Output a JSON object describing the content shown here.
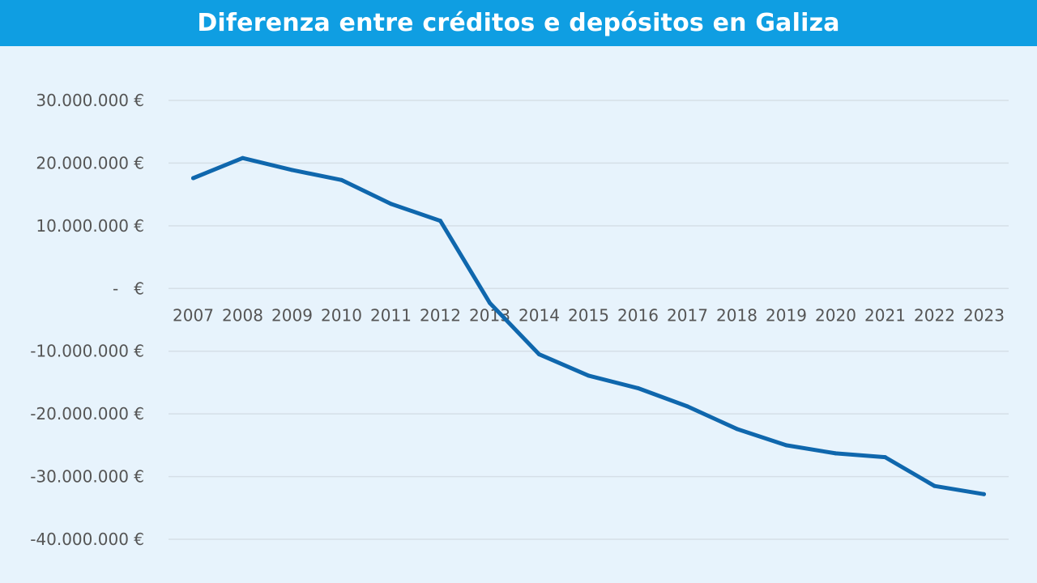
{
  "header": {
    "title": "Diferenza entre créditos e depósitos en Galiza"
  },
  "colors": {
    "header_bg": "#0f9ee2",
    "plot_bg": "#e7f3fc",
    "line": "#0f67ad",
    "grid": "#d5dfe7"
  },
  "chart_data": {
    "type": "line",
    "title": "Diferenza entre créditos e depósitos en Galiza",
    "xlabel": "",
    "ylabel": "",
    "categories": [
      "2007",
      "2008",
      "2009",
      "2010",
      "2011",
      "2012",
      "2013",
      "2014",
      "2015",
      "2016",
      "2017",
      "2018",
      "2019",
      "2020",
      "2021",
      "2022",
      "2023"
    ],
    "series": [
      {
        "values": [
          17600000,
          20800000,
          18900000,
          17300000,
          13500000,
          10800000,
          -2300000,
          -10500000,
          -13900000,
          -15900000,
          -18800000,
          -22400000,
          -25000000,
          -26300000,
          -26900000,
          -31500000,
          -32800000
        ]
      }
    ],
    "ylim": [
      -40000000,
      30000000
    ],
    "yticks": [
      30000000,
      20000000,
      10000000,
      0,
      -10000000,
      -20000000,
      -30000000,
      -40000000
    ],
    "ytick_labels": [
      "30.000.000 €",
      "20.000.000 €",
      "10.000.000 €",
      "-   €",
      "-10.000.000 €",
      "-20.000.000 €",
      "-30.000.000 €",
      "-40.000.000 €"
    ],
    "grid": true,
    "legend": "none"
  }
}
